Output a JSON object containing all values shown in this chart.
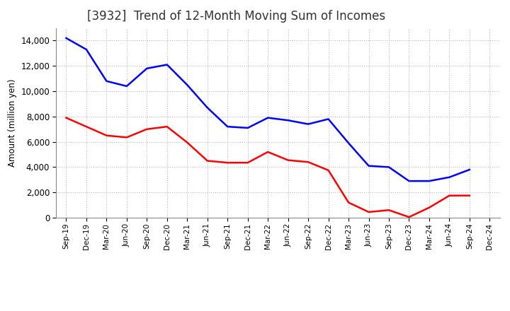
{
  "title": "[3932]  Trend of 12-Month Moving Sum of Incomes",
  "ylabel": "Amount (million yen)",
  "x_labels": [
    "Sep-19",
    "Dec-19",
    "Mar-20",
    "Jun-20",
    "Sep-20",
    "Dec-20",
    "Mar-21",
    "Jun-21",
    "Sep-21",
    "Dec-21",
    "Mar-22",
    "Jun-22",
    "Sep-22",
    "Dec-22",
    "Mar-23",
    "Jun-23",
    "Sep-23",
    "Dec-23",
    "Mar-24",
    "Jun-24",
    "Sep-24",
    "Dec-24"
  ],
  "ordinary_income": [
    14200,
    13300,
    10800,
    10400,
    11800,
    12100,
    10500,
    8700,
    7200,
    7100,
    7900,
    7700,
    7400,
    7800,
    5900,
    4100,
    4000,
    2900,
    2900,
    3200,
    3800,
    null
  ],
  "net_income": [
    7900,
    7200,
    6500,
    6350,
    7000,
    7200,
    5950,
    4500,
    4350,
    4350,
    5200,
    4550,
    4400,
    3750,
    1200,
    450,
    600,
    50,
    800,
    1750,
    1750,
    null
  ],
  "ordinary_color": "#0000ff",
  "net_color": "#ff0000",
  "background_color": "#ffffff",
  "ylim": [
    0,
    15000
  ],
  "yticks": [
    0,
    2000,
    4000,
    6000,
    8000,
    10000,
    12000,
    14000
  ],
  "grid_color": "#aaaaaa",
  "title_color": "#333333",
  "title_fontsize": 12,
  "ylabel_fontsize": 8.5,
  "xtick_fontsize": 7.5,
  "ytick_fontsize": 8.5,
  "legend_fontsize": 9.5,
  "line_width": 1.8
}
